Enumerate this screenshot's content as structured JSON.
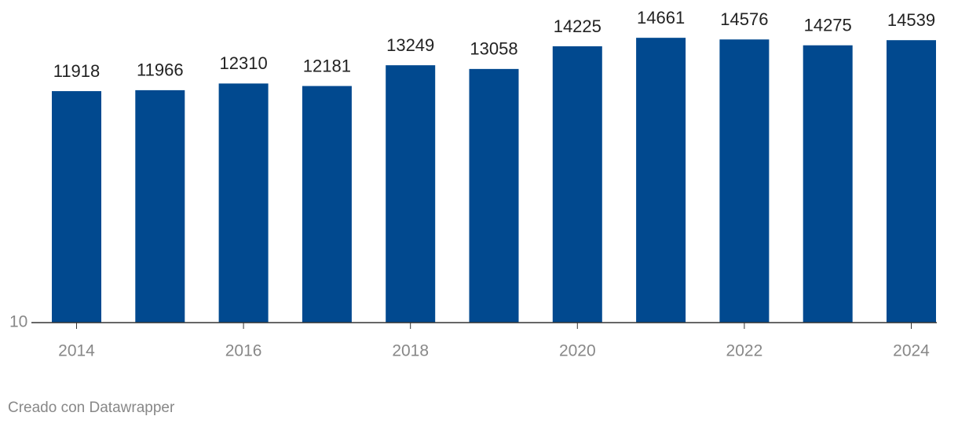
{
  "chart_data": {
    "type": "bar",
    "categories": [
      "2014",
      null,
      "2016",
      null,
      "2018",
      null,
      "2020",
      null,
      "2022",
      null,
      "2024"
    ],
    "values": [
      11918,
      11966,
      12310,
      12181,
      13249,
      13058,
      14225,
      14661,
      14576,
      14275,
      14539
    ],
    "color": "#01498f",
    "ylim": [
      10,
      16000
    ],
    "yticks": [
      10
    ],
    "footer": "Creado con Datawrapper"
  }
}
